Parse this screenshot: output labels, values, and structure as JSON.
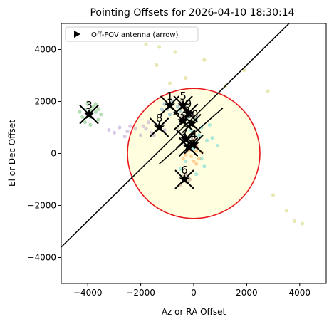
{
  "chart_data": {
    "type": "scatter",
    "title": "Pointing Offsets for 2026-04-10 18:30:14",
    "xlabel": "Az or RA Offset",
    "ylabel": "El or Dec Offset",
    "xlim": [
      -5000,
      5000
    ],
    "ylim": [
      -5000,
      5000
    ],
    "xticks": [
      -4000,
      -2000,
      0,
      2000,
      4000
    ],
    "yticks": [
      -4000,
      -2000,
      0,
      2000,
      4000
    ],
    "xtick_labels": [
      "−4000",
      "−2000",
      "0",
      "2000",
      "4000"
    ],
    "ytick_labels": [
      "−4000",
      "−2000",
      "0",
      "2000",
      "4000"
    ],
    "grid": false,
    "legend": {
      "position": "upper-left",
      "entries": [
        {
          "label": "Off-FOV antenna (arrow)",
          "marker": "right-triangle"
        }
      ]
    },
    "fov_circle": {
      "center": [
        0,
        0
      ],
      "radius": 2500,
      "edge_color": "#e8171c",
      "fill_color": "#ffffe0"
    },
    "diagonal_lines": [
      {
        "x": [
          -5000,
          3600
        ],
        "y": [
          -3600,
          5000
        ]
      },
      {
        "x": [
          -1300,
          1100
        ],
        "y": [
          -400,
          1750
        ]
      }
    ],
    "antennas": [
      {
        "label": "3",
        "x": -3950,
        "y": 1500,
        "color": "#2ca02c"
      },
      {
        "label": "8",
        "x": -1300,
        "y": 1000,
        "color": "#9467bd"
      },
      {
        "label": "1",
        "x": -900,
        "y": 1850,
        "color": "#1f77b4"
      },
      {
        "label": "5",
        "x": -400,
        "y": 1850,
        "color": "#8c564b"
      },
      {
        "label": "9",
        "x": -200,
        "y": 1550,
        "color": "#17becf"
      },
      {
        "label": "2",
        "x": -400,
        "y": 1250,
        "color": "#7f7f7f"
      },
      {
        "label": "10",
        "x": -80,
        "y": 1150,
        "color": "#ff7f0e"
      },
      {
        "label": "4",
        "x": 0,
        "y": 350,
        "color": "#d62728"
      },
      {
        "label": "7",
        "x": -300,
        "y": 550,
        "color": "#e377c2"
      },
      {
        "label": "11",
        "x": -200,
        "y": 250,
        "color": "#bcbd22"
      },
      {
        "label": "6",
        "x": -350,
        "y": -1000,
        "color": "#8c564b"
      }
    ],
    "scatter_series": [
      {
        "name": "3",
        "color": "#2ca02c",
        "points": [
          [
            -4100,
            1700
          ],
          [
            -3900,
            1400
          ],
          [
            -3700,
            1600
          ],
          [
            -4200,
            1400
          ],
          [
            -3800,
            1800
          ],
          [
            -3600,
            1300
          ],
          [
            -4000,
            1900
          ],
          [
            -3500,
            1500
          ],
          [
            -4300,
            1600
          ],
          [
            -3900,
            1100
          ],
          [
            -3700,
            1900
          ],
          [
            -4100,
            1200
          ],
          [
            -3600,
            1700
          ],
          [
            -4000,
            1550
          ],
          [
            -3850,
            1650
          ]
        ]
      },
      {
        "name": "8",
        "color": "#9467bd",
        "points": [
          [
            -3200,
            900
          ],
          [
            -2800,
            1000
          ],
          [
            -2500,
            850
          ],
          [
            -2200,
            950
          ],
          [
            -1900,
            1050
          ],
          [
            -1600,
            800
          ],
          [
            -1400,
            1100
          ],
          [
            -2000,
            700
          ],
          [
            -2400,
            1050
          ],
          [
            -3000,
            800
          ],
          [
            -1700,
            1200
          ],
          [
            -1100,
            900
          ],
          [
            -2600,
            650
          ],
          [
            -1800,
            950
          ],
          [
            -1500,
            700
          ]
        ]
      },
      {
        "name": "1",
        "color": "#1f77b4",
        "points": [
          [
            -1000,
            1700
          ],
          [
            -800,
            2000
          ],
          [
            -700,
            1600
          ],
          [
            -1100,
            1900
          ],
          [
            -600,
            1800
          ],
          [
            -900,
            1500
          ],
          [
            -1200,
            1700
          ],
          [
            -500,
            1650
          ]
        ]
      },
      {
        "name": "9",
        "color": "#17becf",
        "points": [
          [
            -200,
            1400
          ],
          [
            100,
            1300
          ],
          [
            300,
            1000
          ],
          [
            200,
            700
          ],
          [
            500,
            500
          ],
          [
            0,
            200
          ],
          [
            -300,
            -300
          ],
          [
            400,
            -500
          ],
          [
            700,
            600
          ],
          [
            -100,
            900
          ],
          [
            600,
            1100
          ],
          [
            300,
            -200
          ],
          [
            900,
            300
          ],
          [
            -500,
            -600
          ],
          [
            100,
            -800
          ]
        ]
      },
      {
        "name": "10",
        "color": "#ff7f0e",
        "points": [
          [
            -100,
            -100
          ],
          [
            100,
            100
          ],
          [
            -300,
            -50
          ],
          [
            200,
            -200
          ],
          [
            0,
            -300
          ],
          [
            -200,
            100
          ],
          [
            300,
            50
          ],
          [
            -100,
            300
          ],
          [
            100,
            -400
          ],
          [
            -400,
            -200
          ]
        ]
      },
      {
        "name": "11",
        "color": "#bcbd22",
        "points": [
          [
            -1800,
            4200
          ],
          [
            -1400,
            3400
          ],
          [
            -700,
            3900
          ],
          [
            -300,
            2900
          ],
          [
            400,
            3600
          ],
          [
            1200,
            2600
          ],
          [
            1900,
            3200
          ],
          [
            2800,
            2400
          ],
          [
            3000,
            -1600
          ],
          [
            3500,
            -2200
          ],
          [
            3800,
            -2600
          ],
          [
            4100,
            -2700
          ],
          [
            -900,
            2700
          ],
          [
            -1300,
            4100
          ]
        ]
      },
      {
        "name": "6",
        "color": "#8c564b",
        "points": [
          [
            -400,
            -900
          ],
          [
            -250,
            -1100
          ],
          [
            -500,
            -1200
          ],
          [
            -300,
            -800
          ],
          [
            -150,
            -1000
          ]
        ]
      },
      {
        "name": "2",
        "color": "#7f7f7f",
        "points": [
          [
            -500,
            1200
          ],
          [
            -300,
            1300
          ],
          [
            -600,
            1000
          ],
          [
            -200,
            1100
          ],
          [
            -450,
            1400
          ]
        ]
      },
      {
        "name": "4",
        "color": "#d62728",
        "points": [
          [
            -100,
            400
          ],
          [
            100,
            300
          ],
          [
            0,
            500
          ],
          [
            -200,
            250
          ]
        ]
      },
      {
        "name": "7",
        "color": "#e377c2",
        "points": [
          [
            -400,
            600
          ],
          [
            -200,
            450
          ],
          [
            -350,
            700
          ],
          [
            -250,
            500
          ]
        ]
      },
      {
        "name": "5",
        "color": "#8c564b",
        "points": [
          [
            -500,
            1900
          ],
          [
            -300,
            1750
          ],
          [
            -450,
            2000
          ]
        ]
      }
    ]
  }
}
